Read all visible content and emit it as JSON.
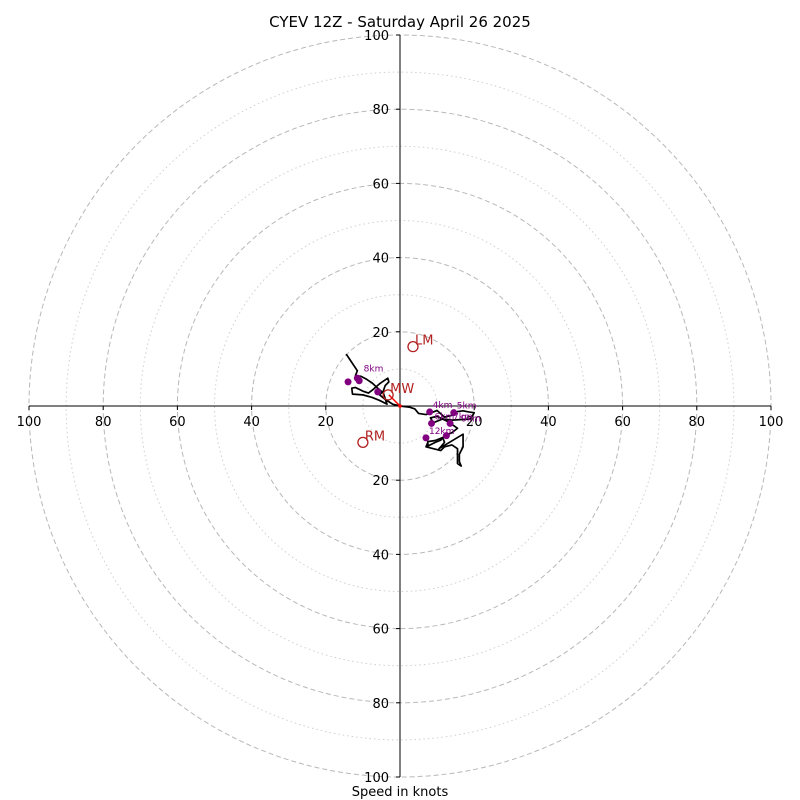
{
  "chart_data": {
    "type": "scatter",
    "title": "CYEV 12Z - Saturday April 26 2025",
    "xlabel": "Speed in knots",
    "ylabel": "",
    "xlim": [
      -100,
      100
    ],
    "ylim": [
      -100,
      100
    ],
    "grid": true,
    "rings_major": [
      20,
      40,
      60,
      80,
      100
    ],
    "rings_minor": [
      10,
      30,
      50,
      70,
      90
    ],
    "x_tick_labels": [
      {
        "value": -100,
        "label": "100"
      },
      {
        "value": -80,
        "label": "80"
      },
      {
        "value": -60,
        "label": "60"
      },
      {
        "value": -40,
        "label": "40"
      },
      {
        "value": -20,
        "label": "20"
      },
      {
        "value": 20,
        "label": "20"
      },
      {
        "value": 40,
        "label": "40"
      },
      {
        "value": 60,
        "label": "60"
      },
      {
        "value": 80,
        "label": "80"
      },
      {
        "value": 100,
        "label": "100"
      }
    ],
    "y_tick_labels": [
      {
        "value": 100,
        "label": "100"
      },
      {
        "value": 80,
        "label": "80"
      },
      {
        "value": 60,
        "label": "60"
      },
      {
        "value": 40,
        "label": "40"
      },
      {
        "value": 20,
        "label": "20"
      },
      {
        "value": -20,
        "label": "20"
      },
      {
        "value": -40,
        "label": "40"
      },
      {
        "value": -60,
        "label": "60"
      },
      {
        "value": -80,
        "label": "80"
      },
      {
        "value": -100,
        "label": "100"
      }
    ],
    "hodograph": {
      "color": "#000000",
      "points": [
        [
          0,
          0
        ],
        [
          2.5,
          -0.3
        ],
        [
          4,
          -0.8
        ],
        [
          5,
          -2
        ],
        [
          7,
          -2.3
        ],
        [
          8.5,
          -1.8
        ],
        [
          10,
          -1.2
        ],
        [
          12,
          -3
        ],
        [
          14,
          -2.5
        ],
        [
          15.5,
          -1.5
        ],
        [
          17,
          -1.3
        ],
        [
          18.5,
          -1.6
        ],
        [
          20,
          -1.8
        ],
        [
          19,
          -3.5
        ],
        [
          14,
          -3.8
        ],
        [
          11.5,
          -3.5
        ],
        [
          9,
          -4.5
        ],
        [
          8.2,
          -3.2
        ],
        [
          10,
          -2.8
        ],
        [
          12.5,
          -4
        ],
        [
          14.5,
          -5.3
        ],
        [
          15.5,
          -6
        ],
        [
          14,
          -7.2
        ],
        [
          12,
          -8
        ],
        [
          11,
          -9.2
        ],
        [
          9.5,
          -9.8
        ],
        [
          7.5,
          -10.8
        ],
        [
          7.5,
          -9.6
        ],
        [
          9.5,
          -9.3
        ],
        [
          11.5,
          -8.5
        ],
        [
          12,
          -9.8
        ],
        [
          11,
          -11
        ],
        [
          10.5,
          -11.5
        ],
        [
          11,
          -11.2
        ],
        [
          17,
          -7.6
        ],
        [
          17,
          -11
        ],
        [
          16,
          -13
        ],
        [
          16,
          -15
        ],
        [
          16.5,
          -16.2
        ],
        [
          15.5,
          -15.5
        ],
        [
          15.5,
          -11.5
        ],
        [
          14,
          -10.5
        ],
        [
          12,
          -11
        ],
        [
          11,
          -12
        ],
        [
          7,
          -11
        ],
        [
          7.5,
          -9.8
        ]
      ]
    },
    "hodograph_upper": {
      "color": "#000000",
      "points": [
        [
          0,
          0
        ],
        [
          -2,
          0.5
        ],
        [
          -4,
          1.8
        ],
        [
          -5.5,
          3
        ],
        [
          -4.5,
          4
        ],
        [
          -4,
          5.5
        ],
        [
          -3,
          6.5
        ],
        [
          -3.3,
          7.5
        ],
        [
          -5.5,
          6
        ],
        [
          -7.2,
          4.5
        ],
        [
          -8.5,
          3.5
        ],
        [
          -10,
          4
        ],
        [
          -12,
          5
        ],
        [
          -13,
          4.8
        ],
        [
          -12.8,
          3.2
        ],
        [
          -10,
          3
        ],
        [
          -7.5,
          2.3
        ],
        [
          -5.5,
          1.5
        ],
        [
          -3.5,
          0.5
        ],
        [
          -4,
          2
        ],
        [
          -4.5,
          3.5
        ],
        [
          -6,
          4.8
        ],
        [
          -7.5,
          6.2
        ],
        [
          -9,
          7.2
        ],
        [
          -10.5,
          8
        ],
        [
          -12,
          8.2
        ],
        [
          -11.5,
          9.5
        ],
        [
          -12.5,
          11
        ],
        [
          -13.5,
          12.5
        ],
        [
          -14.5,
          14
        ]
      ]
    },
    "height_markers": {
      "color": "#800080",
      "points": [
        {
          "label": "",
          "x": -6,
          "y": 3.8
        },
        {
          "label": "",
          "x": -11,
          "y": 6.8
        },
        {
          "label": "",
          "x": -11.5,
          "y": 7.5
        },
        {
          "label": "",
          "x": -14,
          "y": 6.5
        },
        {
          "label": "4km",
          "x": 8,
          "y": -1.6
        },
        {
          "label": "5km",
          "x": 14.5,
          "y": -1.8
        },
        {
          "label": "6km",
          "x": 8.5,
          "y": -4.7
        },
        {
          "label": "7km",
          "x": 13.5,
          "y": -4.7
        },
        {
          "label": "",
          "x": 12.5,
          "y": -8
        },
        {
          "label": "12km",
          "x": 7,
          "y": -8.6
        }
      ],
      "extra_labels": [
        {
          "label": "8km",
          "x": -9.8,
          "y": 9.3
        },
        {
          "label": "9km",
          "x": 16.5,
          "y": -4.2
        }
      ]
    },
    "storm_motion": {
      "color": "#b22222",
      "points": [
        {
          "label": "LM",
          "x": 3.5,
          "y": 16
        },
        {
          "label": "RM",
          "x": -10,
          "y": -9.8
        },
        {
          "label": "MW",
          "x": -3.2,
          "y": 3
        }
      ]
    },
    "shear_vector": {
      "color": "#ff0000",
      "from": [
        -3,
        3
      ],
      "to": [
        0,
        0
      ]
    }
  }
}
